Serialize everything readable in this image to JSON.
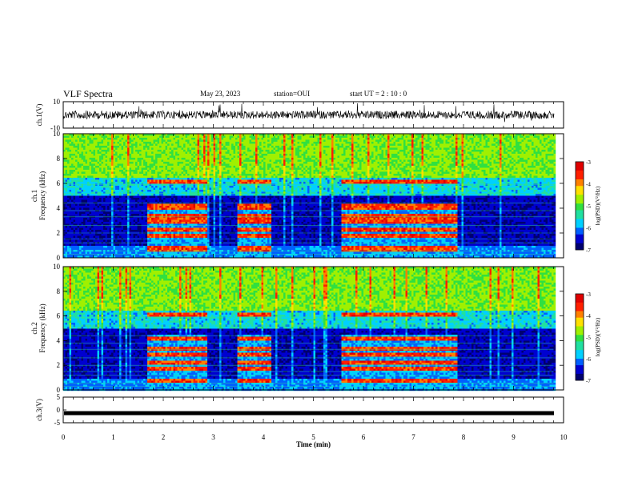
{
  "header": {
    "title": "VLF Spectra",
    "date": "May 23, 2023",
    "station": "station=OUI",
    "start": "start  UT =   2 : 10 : 0"
  },
  "chart_data": [
    {
      "type": "line",
      "panel": "waveform-ch1",
      "ylabel": "ch.1(V)",
      "ylim": [
        -10,
        10
      ],
      "yticks": [
        "10",
        "-10"
      ],
      "xlim": [
        0,
        10
      ]
    },
    {
      "type": "heatmap",
      "panel": "spectrogram-ch1",
      "ylabel": "ch.1\nFrequency (kHz)",
      "ylim": [
        0,
        10
      ],
      "yticks": [
        "0",
        "2",
        "4",
        "6",
        "8",
        "10"
      ],
      "xlim": [
        0,
        10
      ],
      "colorbar": {
        "label": "log(PSD)(V²/Hz)",
        "range": [
          -7,
          -3
        ],
        "ticks": [
          "-3",
          "-4",
          "-5",
          "-6",
          "-7"
        ]
      },
      "data_end_min": 9.8,
      "bursts_min": [
        [
          1.65,
          2.85
        ],
        [
          3.45,
          4.15
        ],
        [
          5.55,
          7.85
        ]
      ]
    },
    {
      "type": "heatmap",
      "panel": "spectrogram-ch2",
      "ylabel": "ch.2\nFrequency (kHz)",
      "ylim": [
        0,
        10
      ],
      "yticks": [
        "0",
        "2",
        "4",
        "6",
        "8",
        "10"
      ],
      "xlim": [
        0,
        10
      ],
      "colorbar": {
        "label": "log(PSD)(V²/Hz)",
        "range": [
          -7,
          -3
        ],
        "ticks": [
          "-3",
          "-4",
          "-5",
          "-6",
          "-7"
        ]
      },
      "data_end_min": 9.8,
      "bursts_min": [
        [
          1.65,
          2.85
        ],
        [
          3.45,
          4.15
        ],
        [
          5.55,
          7.85
        ]
      ]
    },
    {
      "type": "line",
      "panel": "waveform-ch3",
      "ylabel": "ch.3(V)",
      "ylim": [
        -5,
        5
      ],
      "yticks": [
        "5",
        "0",
        "-5"
      ],
      "xlim": [
        0,
        10
      ]
    }
  ],
  "xaxis": {
    "label": "Time (min)",
    "ticks": [
      "0",
      "1",
      "2",
      "3",
      "4",
      "5",
      "6",
      "7",
      "8",
      "9",
      "10"
    ]
  },
  "colormap": [
    "#00006e",
    "#0000d0",
    "#0060ff",
    "#00d0ff",
    "#20e0a0",
    "#30e040",
    "#a0f000",
    "#ffe000",
    "#ff8000",
    "#ff2000",
    "#e00000",
    "#ffffff"
  ]
}
